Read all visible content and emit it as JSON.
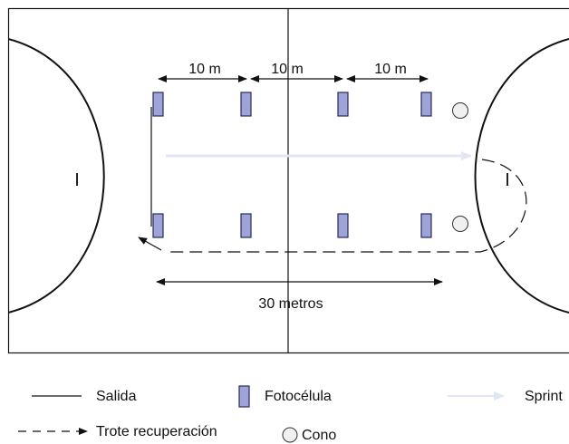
{
  "diagram": {
    "labels": {
      "span1": "10 m",
      "span2": "10 m",
      "span3": "10 m",
      "total": "30 metros",
      "goal_left": "I",
      "goal_right": "I"
    },
    "legend": {
      "salida": "Salida",
      "fotocelula": "Fotocélula",
      "sprint": "Sprint",
      "trote": "Trote recuperación",
      "cono": "Cono"
    },
    "colors": {
      "photocell_fill": "#9fa4d8",
      "photocell_stroke": "#2a2a5a",
      "sprint_arrow": "#eef0f8",
      "line": "#111111",
      "cone_fill": "#f0f0f0"
    }
  }
}
